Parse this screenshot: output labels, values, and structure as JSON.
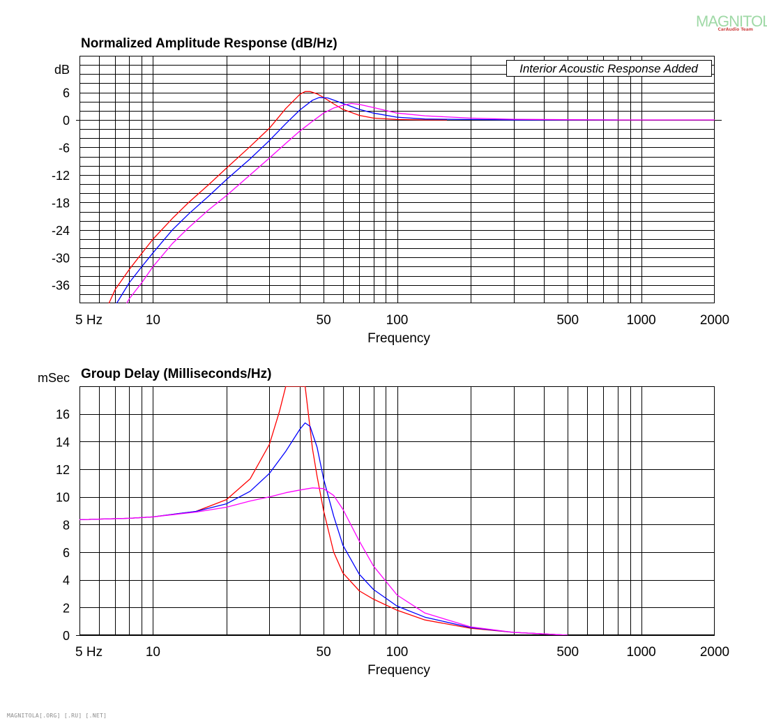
{
  "branding": {
    "logo_text": "MAGNITOLA",
    "logo_subtext": "CarAudio Team",
    "footer_text": "MAGNITOLA[.ORG] [.RU] [.NET]"
  },
  "chart_data": [
    {
      "type": "line",
      "title": "Normalized Amplitude Response (dB/Hz)",
      "xlabel": "Frequency",
      "ylabel": "dB",
      "x_scale": "log",
      "xlim": [
        5,
        2000
      ],
      "ylim": [
        -40,
        14
      ],
      "x_tick_labels": [
        {
          "value": 5,
          "label": "5  Hz"
        },
        {
          "value": 10,
          "label": "10"
        },
        {
          "value": 50,
          "label": "50"
        },
        {
          "value": 100,
          "label": "100"
        },
        {
          "value": 500,
          "label": "500"
        },
        {
          "value": 1000,
          "label": "1000"
        },
        {
          "value": 2000,
          "label": "2000"
        }
      ],
      "y_ticks": [
        6,
        0,
        -6,
        -12,
        -18,
        -24,
        -30,
        -36
      ],
      "grid": true,
      "annotation": "Interior Acoustic Response Added",
      "series": [
        {
          "color": "#ff0000",
          "points": [
            [
              6.6,
              -40
            ],
            [
              7,
              -37
            ],
            [
              8,
              -32.6
            ],
            [
              9,
              -29.1
            ],
            [
              10,
              -26
            ],
            [
              12,
              -21.5
            ],
            [
              14,
              -18
            ],
            [
              17,
              -14
            ],
            [
              20,
              -10.5
            ],
            [
              25,
              -5.8
            ],
            [
              30,
              -1.8
            ],
            [
              35,
              2.5
            ],
            [
              40,
              5.6
            ],
            [
              42,
              6.2
            ],
            [
              44,
              6.2
            ],
            [
              47,
              5.7
            ],
            [
              50,
              4.9
            ],
            [
              55,
              3.5
            ],
            [
              60,
              2.3
            ],
            [
              70,
              1.0
            ],
            [
              80,
              0.4
            ],
            [
              100,
              0.1
            ],
            [
              130,
              0
            ],
            [
              160,
              0
            ]
          ]
        },
        {
          "color": "#0000ff",
          "points": [
            [
              7.1,
              -40
            ],
            [
              8,
              -35.5
            ],
            [
              9,
              -32
            ],
            [
              10,
              -29
            ],
            [
              12,
              -24
            ],
            [
              14,
              -20.5
            ],
            [
              17,
              -16.5
            ],
            [
              20,
              -13
            ],
            [
              25,
              -8.5
            ],
            [
              30,
              -4.5
            ],
            [
              35,
              -0.8
            ],
            [
              40,
              2.2
            ],
            [
              45,
              4.3
            ],
            [
              48,
              4.9
            ],
            [
              52,
              4.8
            ],
            [
              60,
              3.6
            ],
            [
              70,
              2.3
            ],
            [
              80,
              1.5
            ],
            [
              100,
              0.6
            ],
            [
              130,
              0.2
            ],
            [
              200,
              0.1
            ],
            [
              300,
              0
            ],
            [
              500,
              0
            ],
            [
              800,
              0
            ]
          ]
        },
        {
          "color": "#ff00ff",
          "points": [
            [
              7.8,
              -40
            ],
            [
              8,
              -39
            ],
            [
              9,
              -35.5
            ],
            [
              10,
              -32
            ],
            [
              12,
              -27
            ],
            [
              14,
              -23.5
            ],
            [
              17,
              -19.5
            ],
            [
              20,
              -16.5
            ],
            [
              25,
              -12
            ],
            [
              30,
              -8.3
            ],
            [
              35,
              -5.1
            ],
            [
              40,
              -2.4
            ],
            [
              45,
              -0.3
            ],
            [
              50,
              1.5
            ],
            [
              55,
              2.6
            ],
            [
              60,
              3.2
            ],
            [
              65,
              3.6
            ],
            [
              70,
              3.4
            ],
            [
              80,
              2.7
            ],
            [
              100,
              1.5
            ],
            [
              130,
              0.9
            ],
            [
              200,
              0.4
            ],
            [
              300,
              0.15
            ],
            [
              500,
              0.05
            ],
            [
              800,
              0
            ],
            [
              2000,
              0
            ]
          ]
        }
      ]
    },
    {
      "type": "line",
      "title": "Group Delay (Milliseconds/Hz)",
      "xlabel": "Frequency",
      "ylabel": "mSec",
      "x_scale": "log",
      "xlim": [
        5,
        2000
      ],
      "ylim": [
        0,
        18
      ],
      "x_tick_labels": [
        {
          "value": 5,
          "label": "5  Hz"
        },
        {
          "value": 10,
          "label": "10"
        },
        {
          "value": 50,
          "label": "50"
        },
        {
          "value": 100,
          "label": "100"
        },
        {
          "value": 500,
          "label": "500"
        },
        {
          "value": 1000,
          "label": "1000"
        },
        {
          "value": 2000,
          "label": "2000"
        }
      ],
      "y_ticks": [
        16,
        14,
        12,
        10,
        8,
        6,
        4,
        2,
        0
      ],
      "grid": true,
      "series": [
        {
          "color": "#ff0000",
          "points": [
            [
              5,
              8.35
            ],
            [
              8,
              8.45
            ],
            [
              10,
              8.55
            ],
            [
              15,
              8.95
            ],
            [
              20,
              9.8
            ],
            [
              25,
              11.3
            ],
            [
              30,
              13.8
            ],
            [
              33,
              16.2
            ],
            [
              35,
              18
            ],
            [
              42,
              18
            ],
            [
              45,
              13.5
            ],
            [
              47,
              11.5
            ],
            [
              50,
              9
            ],
            [
              55,
              6
            ],
            [
              60,
              4.5
            ],
            [
              70,
              3.2
            ],
            [
              80,
              2.6
            ],
            [
              100,
              1.8
            ],
            [
              130,
              1.1
            ],
            [
              200,
              0.5
            ],
            [
              300,
              0.2
            ],
            [
              500,
              0
            ]
          ]
        },
        {
          "color": "#0000ff",
          "points": [
            [
              5,
              8.35
            ],
            [
              8,
              8.45
            ],
            [
              10,
              8.55
            ],
            [
              15,
              8.95
            ],
            [
              20,
              9.5
            ],
            [
              25,
              10.4
            ],
            [
              30,
              11.7
            ],
            [
              35,
              13.3
            ],
            [
              40,
              14.9
            ],
            [
              42,
              15.35
            ],
            [
              44,
              15.1
            ],
            [
              47,
              13.6
            ],
            [
              50,
              11.3
            ],
            [
              55,
              8.6
            ],
            [
              60,
              6.5
            ],
            [
              70,
              4.4
            ],
            [
              80,
              3.3
            ],
            [
              100,
              2.1
            ],
            [
              130,
              1.3
            ],
            [
              200,
              0.55
            ],
            [
              300,
              0.2
            ],
            [
              500,
              0
            ]
          ]
        },
        {
          "color": "#ff00ff",
          "points": [
            [
              5,
              8.35
            ],
            [
              8,
              8.45
            ],
            [
              10,
              8.55
            ],
            [
              15,
              8.9
            ],
            [
              20,
              9.25
            ],
            [
              25,
              9.7
            ],
            [
              30,
              10
            ],
            [
              35,
              10.3
            ],
            [
              40,
              10.5
            ],
            [
              45,
              10.65
            ],
            [
              50,
              10.6
            ],
            [
              55,
              10.1
            ],
            [
              60,
              9.1
            ],
            [
              70,
              6.8
            ],
            [
              80,
              5
            ],
            [
              100,
              2.9
            ],
            [
              130,
              1.6
            ],
            [
              200,
              0.6
            ],
            [
              300,
              0.2
            ],
            [
              500,
              0
            ]
          ]
        }
      ]
    }
  ]
}
